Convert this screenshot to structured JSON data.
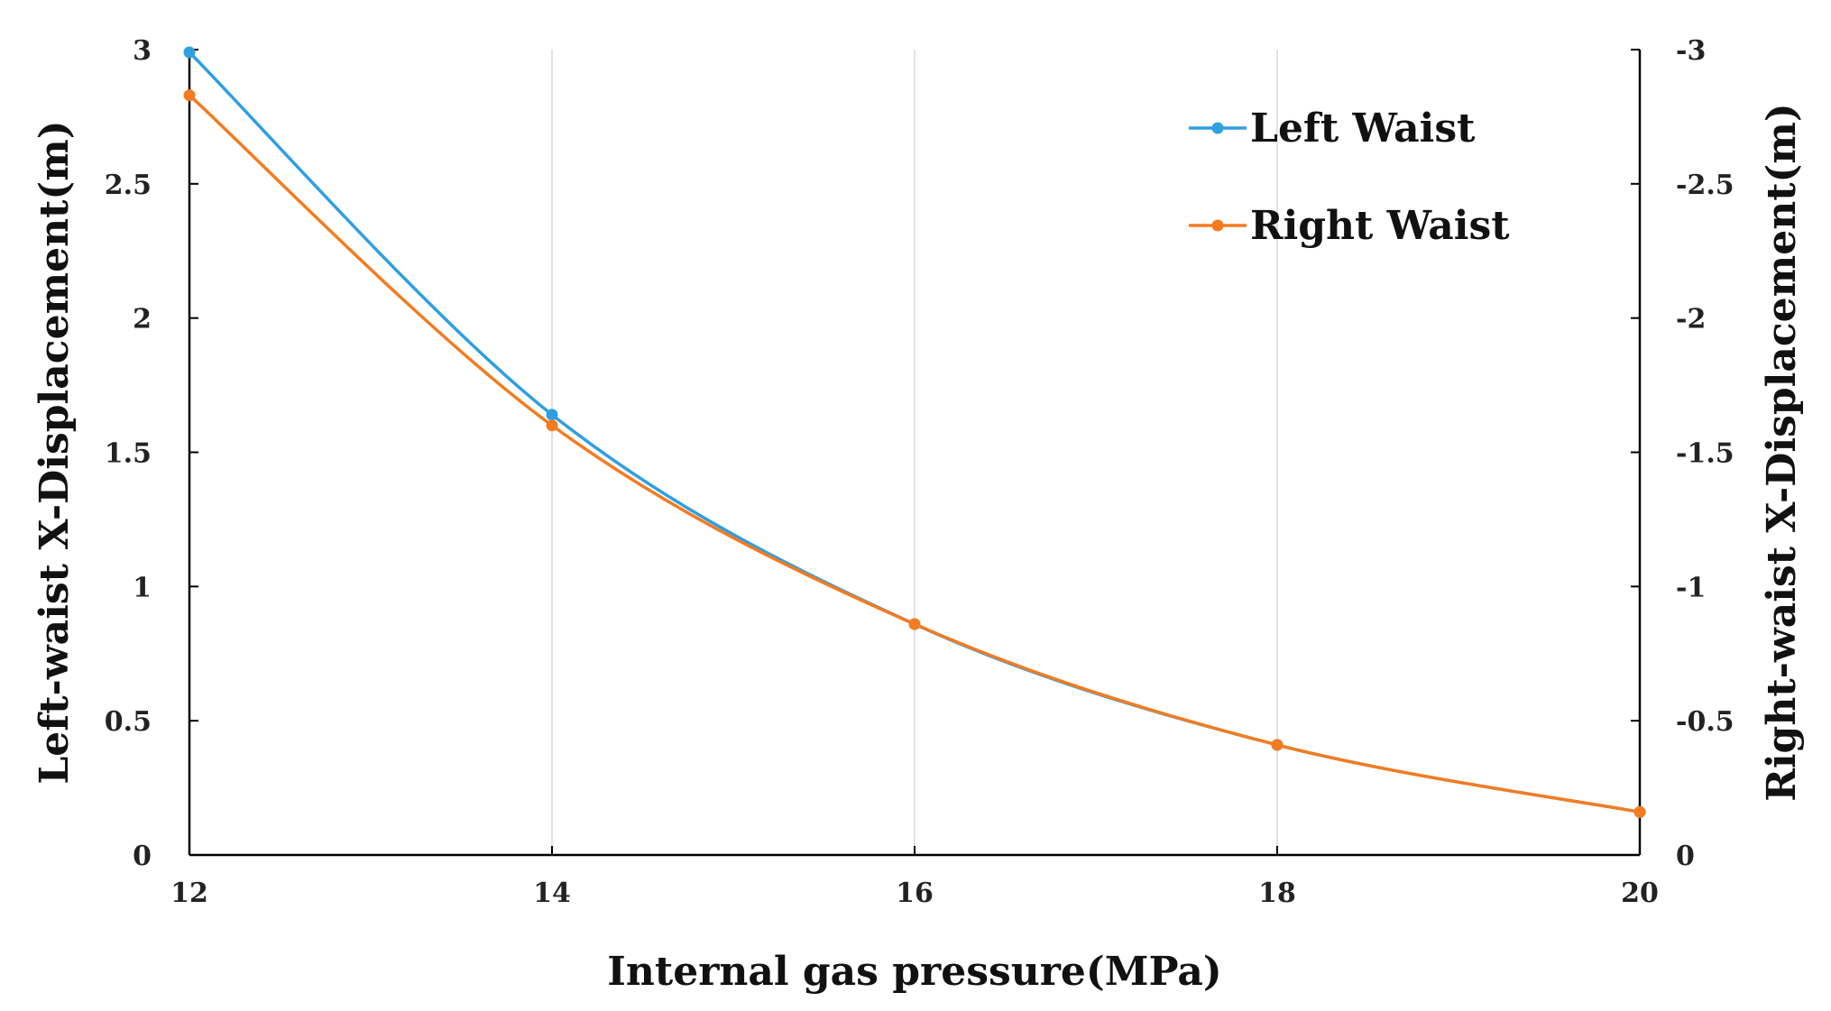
{
  "chart_data": {
    "type": "line",
    "title": "",
    "xlabel": "Internal gas pressure(MPa)",
    "ylabel": "Left-waist X-Displacement(m)",
    "y2label": "Right-waist X-Displacement(m)",
    "xlim": [
      12,
      20
    ],
    "ylim": [
      0,
      3
    ],
    "y2lim": [
      0,
      -3
    ],
    "x_ticks": [
      "12",
      "14",
      "16",
      "18",
      "20"
    ],
    "y_ticks": [
      "0",
      "0.5",
      "1",
      "1.5",
      "2",
      "2.5",
      "3"
    ],
    "y2_ticks": [
      "0",
      "-0.5",
      "-1",
      "-1.5",
      "-2",
      "-2.5",
      "-3"
    ],
    "grid": "vertical",
    "legend_position": "top-right",
    "series": [
      {
        "name": "Left Waist",
        "color": "#2e9fe0",
        "axis": "left",
        "x": [
          12,
          14,
          16,
          18,
          20
        ],
        "values": [
          2.99,
          1.64,
          0.86,
          0.41,
          0.16
        ]
      },
      {
        "name": "Right Waist",
        "color": "#f47b20",
        "axis": "right",
        "x": [
          12,
          14,
          16,
          18,
          20
        ],
        "values": [
          -2.83,
          -1.6,
          -0.86,
          -0.41,
          -0.16
        ]
      }
    ]
  }
}
